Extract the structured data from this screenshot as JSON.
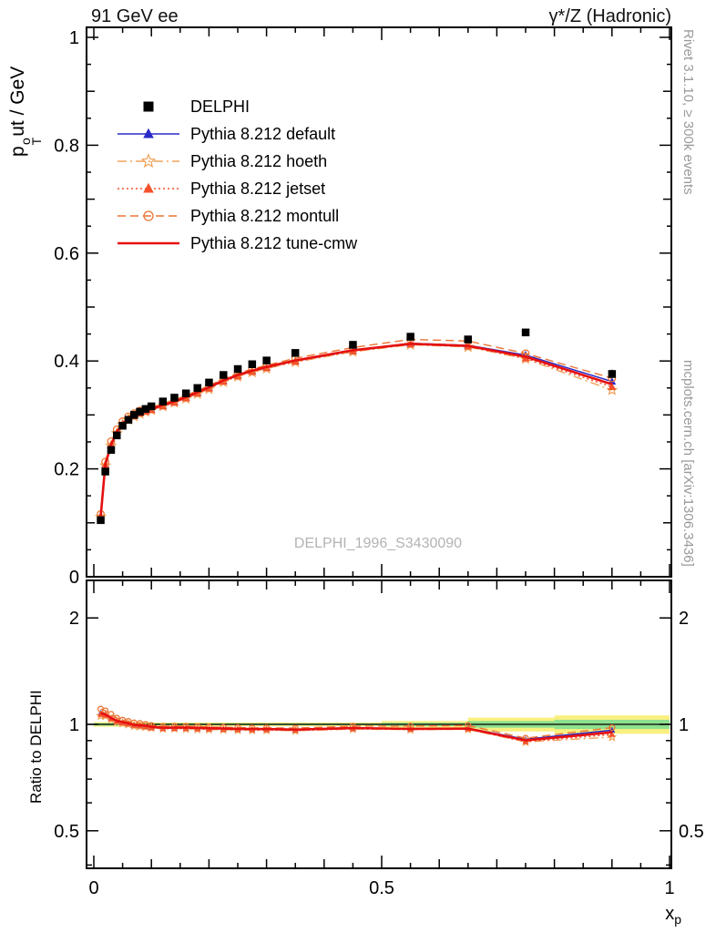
{
  "chart_data": {
    "type": "line",
    "title_left": "91 GeV ee",
    "title_right": "γ*/Z (Hadronic)",
    "rivet_note": "Rivet 3.1.10, ≥ 300k events",
    "mcplots_note": "mcplots.cern.ch [arXiv:1306.3436]",
    "watermark": "DELPHI_1996_S3430090",
    "ylabel_main": {
      "base": "p",
      "sup": "o",
      "sub": "T",
      "rest": "ut / GeV",
      "full": "p_T^out / GeV"
    },
    "ylabel_ratio": "Ratio to DELPHI",
    "xlabel": {
      "base": "x",
      "sub": "p",
      "full": "x_p"
    },
    "axes": {
      "x_range_frame": [
        -0.013,
        1.003
      ],
      "y_range_main": [
        0,
        1.018
      ],
      "y_range_ratio": [
        0.39,
        2.55
      ],
      "ratio_log": true,
      "grid": false,
      "legend_position": "top-left",
      "x_ticks": [
        {
          "v": 0,
          "label": "0"
        },
        {
          "v": 0.5,
          "label": "0.5"
        },
        {
          "v": 1,
          "label": "1"
        }
      ],
      "y_ticks_main": [
        {
          "v": 0,
          "label": "0"
        },
        {
          "v": 0.2,
          "label": "0.2"
        },
        {
          "v": 0.4,
          "label": "0.4"
        },
        {
          "v": 0.6,
          "label": "0.6"
        },
        {
          "v": 0.8,
          "label": "0.8"
        },
        {
          "v": 1,
          "label": "1"
        }
      ],
      "y_ticks_ratio": [
        {
          "v": 0.5,
          "label": "0.5"
        },
        {
          "v": 1,
          "label": "1"
        },
        {
          "v": 2,
          "label": "2"
        }
      ],
      "y_minor_ratio": [
        0.4,
        0.6,
        0.7,
        0.8,
        0.9
      ]
    },
    "colors": {
      "band_yellow": "#f9f07f",
      "band_green": "#8ee08e",
      "reference_line": "#000000"
    },
    "x": [
      0.012,
      0.02,
      0.03,
      0.04,
      0.05,
      0.06,
      0.07,
      0.08,
      0.09,
      0.1,
      0.12,
      0.14,
      0.16,
      0.18,
      0.2,
      0.225,
      0.25,
      0.275,
      0.3,
      0.35,
      0.45,
      0.55,
      0.65,
      0.75,
      0.9
    ],
    "series": [
      {
        "name": "DELPHI",
        "kind": "data",
        "marker": "square-filled",
        "color": "#000000",
        "line": false,
        "dash": "solid",
        "width": 1.5,
        "values": [
          0.105,
          0.195,
          0.235,
          0.262,
          0.28,
          0.291,
          0.3,
          0.306,
          0.311,
          0.316,
          0.325,
          0.332,
          0.34,
          0.35,
          0.36,
          0.374,
          0.385,
          0.394,
          0.401,
          0.415,
          0.43,
          0.445,
          0.44,
          0.453,
          0.376
        ],
        "errors": [
          0.003,
          0.003,
          0.002,
          0.002,
          0.002,
          0.002,
          0.002,
          0.002,
          0.002,
          0.002,
          0.002,
          0.002,
          0.002,
          0.002,
          0.002,
          0.003,
          0.003,
          0.003,
          0.003,
          0.003,
          0.004,
          0.004,
          0.005,
          0.006,
          0.008
        ]
      },
      {
        "name": "Pythia 8.212 default",
        "kind": "mc",
        "marker": "triangle-filled",
        "color": "#2929c8",
        "line": true,
        "dash": "solid",
        "width": 1.5,
        "values": [
          0.113,
          0.208,
          0.245,
          0.268,
          0.284,
          0.293,
          0.299,
          0.304,
          0.307,
          0.31,
          0.317,
          0.324,
          0.332,
          0.341,
          0.35,
          0.363,
          0.373,
          0.381,
          0.388,
          0.4,
          0.419,
          0.433,
          0.429,
          0.411,
          0.362
        ]
      },
      {
        "name": "Pythia 8.212 hoeth",
        "kind": "mc",
        "marker": "star-open",
        "color": "#f0a35c",
        "line": true,
        "dash": "dash-dot",
        "width": 1.4,
        "values": [
          0.111,
          0.206,
          0.243,
          0.266,
          0.282,
          0.291,
          0.297,
          0.302,
          0.306,
          0.309,
          0.316,
          0.323,
          0.33,
          0.339,
          0.348,
          0.361,
          0.371,
          0.379,
          0.386,
          0.398,
          0.417,
          0.43,
          0.426,
          0.404,
          0.346
        ]
      },
      {
        "name": "Pythia 8.212 jetset",
        "kind": "mc",
        "marker": "triangle-filled",
        "color": "#f4512c",
        "line": true,
        "dash": "dotted",
        "width": 1.6,
        "values": [
          0.112,
          0.207,
          0.244,
          0.267,
          0.283,
          0.292,
          0.298,
          0.303,
          0.306,
          0.309,
          0.316,
          0.323,
          0.331,
          0.34,
          0.349,
          0.362,
          0.372,
          0.38,
          0.387,
          0.399,
          0.418,
          0.431,
          0.427,
          0.405,
          0.352
        ]
      },
      {
        "name": "Pythia 8.212 montull",
        "kind": "mc",
        "marker": "circle-open",
        "color": "#ec7332",
        "line": true,
        "dash": "dashed",
        "width": 1.4,
        "values": [
          0.116,
          0.213,
          0.251,
          0.273,
          0.288,
          0.297,
          0.303,
          0.308,
          0.311,
          0.314,
          0.321,
          0.328,
          0.336,
          0.345,
          0.354,
          0.367,
          0.377,
          0.385,
          0.392,
          0.405,
          0.425,
          0.44,
          0.437,
          0.414,
          0.368
        ]
      },
      {
        "name": "Pythia 8.212 tune-cmw",
        "kind": "mc",
        "marker": "none",
        "color": "#e51010",
        "line": true,
        "dash": "solid",
        "width": 2.6,
        "values": [
          0.113,
          0.208,
          0.245,
          0.268,
          0.284,
          0.293,
          0.299,
          0.304,
          0.308,
          0.311,
          0.318,
          0.325,
          0.333,
          0.342,
          0.351,
          0.364,
          0.374,
          0.382,
          0.389,
          0.401,
          0.42,
          0.432,
          0.428,
          0.408,
          0.357
        ]
      }
    ],
    "ratio_reference": 1,
    "ratio_band": [
      {
        "x0": 0.0,
        "x1": 0.1,
        "half_yellow": 0.015,
        "half_green": 0.008
      },
      {
        "x0": 0.1,
        "x1": 0.5,
        "half_yellow": 0.012,
        "half_green": 0.006
      },
      {
        "x0": 0.5,
        "x1": 0.65,
        "half_yellow": 0.022,
        "half_green": 0.011
      },
      {
        "x0": 0.65,
        "x1": 0.8,
        "half_yellow": 0.045,
        "half_green": 0.022
      },
      {
        "x0": 0.8,
        "x1": 1.0,
        "half_yellow": 0.06,
        "half_green": 0.03
      }
    ]
  }
}
